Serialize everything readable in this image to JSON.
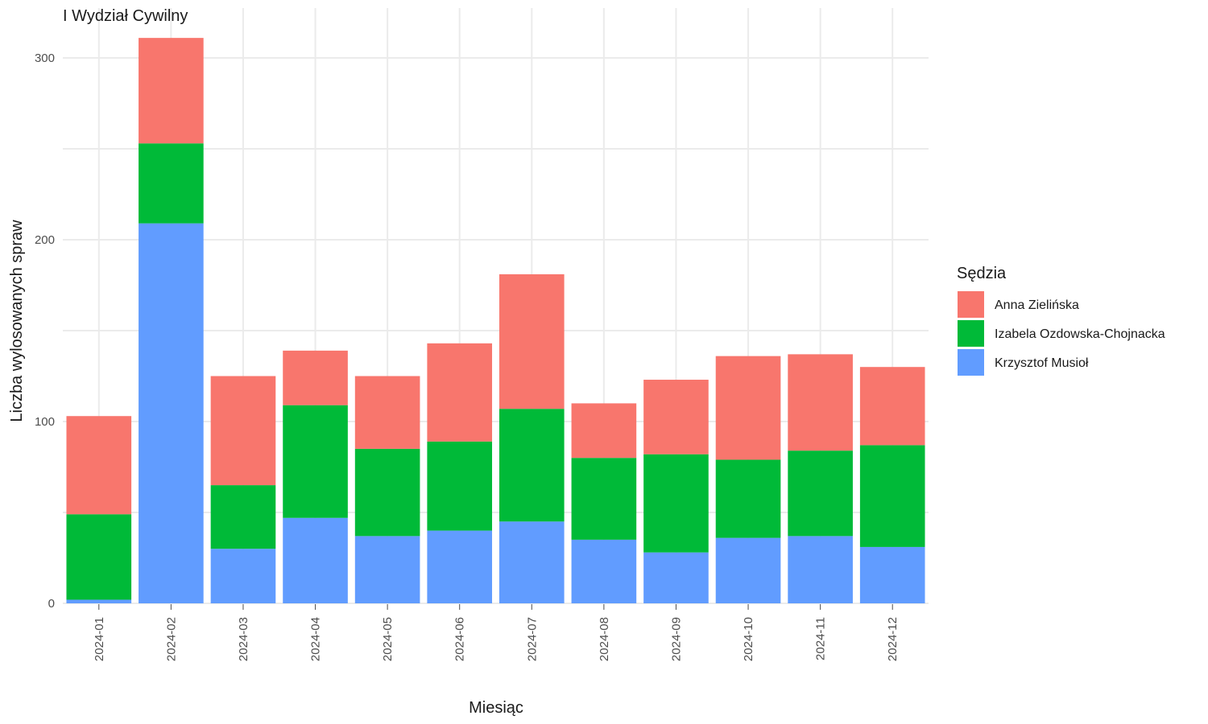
{
  "chart_data": {
    "type": "bar",
    "stacked": true,
    "title": "I Wydział Cywilny",
    "xlabel": "Miesiąc",
    "ylabel": "Liczba wylosowanych spraw",
    "ylim": [
      0,
      320
    ],
    "yticks": [
      0,
      100,
      200,
      300
    ],
    "grid": true,
    "legend_title": "Sędzia",
    "legend_position": "right",
    "categories": [
      "2024-01",
      "2024-02",
      "2024-03",
      "2024-04",
      "2024-05",
      "2024-06",
      "2024-07",
      "2024-08",
      "2024-09",
      "2024-10",
      "2024-11",
      "2024-12"
    ],
    "series": [
      {
        "name": "Krzysztof Musioł",
        "color": "#619CFF",
        "values": [
          2,
          209,
          30,
          47,
          37,
          40,
          45,
          35,
          28,
          36,
          37,
          31
        ]
      },
      {
        "name": "Izabela Ozdowska-Chojnacka",
        "color": "#00BA38",
        "values": [
          47,
          44,
          35,
          62,
          48,
          49,
          62,
          45,
          54,
          43,
          47,
          56
        ]
      },
      {
        "name": "Anna Zielińska",
        "color": "#F8766D",
        "values": [
          54,
          58,
          60,
          30,
          40,
          54,
          74,
          30,
          41,
          57,
          53,
          43
        ]
      }
    ],
    "legend_order": [
      "Anna Zielińska",
      "Izabela Ozdowska-Chojnacka",
      "Krzysztof Musioł"
    ]
  }
}
